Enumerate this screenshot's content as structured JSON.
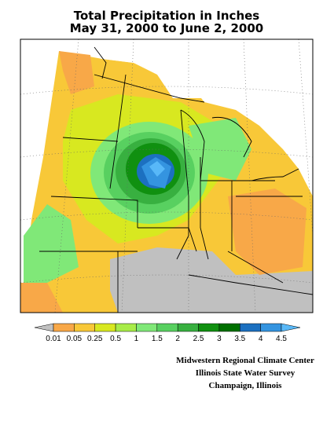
{
  "title": [
    "Total Precipitation in Inches",
    "May 31, 2000 to June 2, 2000"
  ],
  "legend": {
    "labels": [
      "0.01",
      "0.05",
      "0.25",
      "0.5",
      "1",
      "1.5",
      "2",
      "2.5",
      "3",
      "3.5",
      "4",
      "4.5"
    ],
    "colors": [
      "#c0c0c0",
      "#f8a848",
      "#f8c838",
      "#d8e820",
      "#a8ec48",
      "#80e878",
      "#58d060",
      "#38b040",
      "#109010",
      "#007000",
      "#1c70c0",
      "#3494e0",
      "#58b8f8"
    ]
  },
  "credits": [
    "Midwestern Regional Climate Center",
    "Illinois State Water Survey",
    "Champaign, Illinois"
  ]
}
